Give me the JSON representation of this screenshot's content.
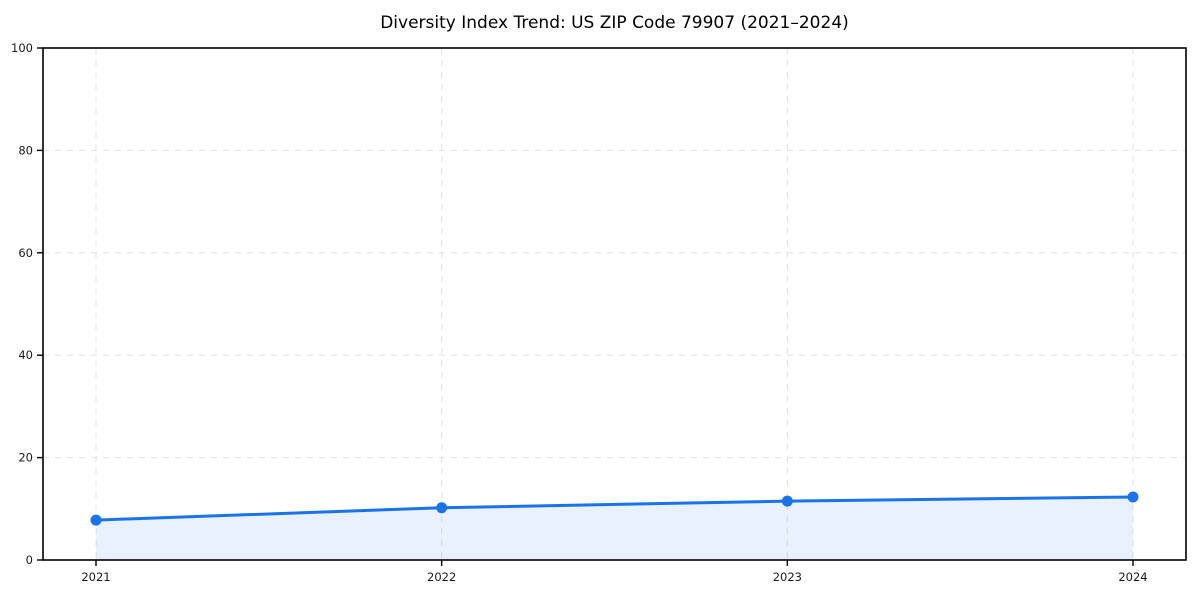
{
  "page": {
    "background": "#ffffff"
  },
  "chart_data": {
    "type": "line",
    "title": "Diversity Index Trend: US ZIP Code 79907 (2021–2024)",
    "x": [
      2021,
      2022,
      2023,
      2024
    ],
    "xticklabels": [
      "2021",
      "2022",
      "2023",
      "2024"
    ],
    "series": [
      {
        "name": "Diversity Index",
        "values": [
          7.8,
          10.2,
          11.5,
          12.3
        ]
      }
    ],
    "xlabel": "",
    "ylabel": "",
    "ylim": [
      0,
      100
    ],
    "yticks": [
      0,
      20,
      40,
      60,
      80,
      100
    ],
    "ytick_labels": [
      "0",
      "20",
      "40",
      "60",
      "80",
      "100"
    ],
    "grid": true,
    "grid_style": "dashed",
    "legend": false,
    "markers": true,
    "area_fill": true,
    "style": {
      "line_color": "#1a73e8",
      "marker_color": "#1a73e8",
      "area_fill_color": "#1a73e8",
      "area_fill_opacity": 0.1,
      "grid_color": "#e2e2e2",
      "spine_color": "#000000",
      "tick_label_color": "#1a1a1a",
      "line_width": 3,
      "marker_radius": 5.5
    }
  }
}
